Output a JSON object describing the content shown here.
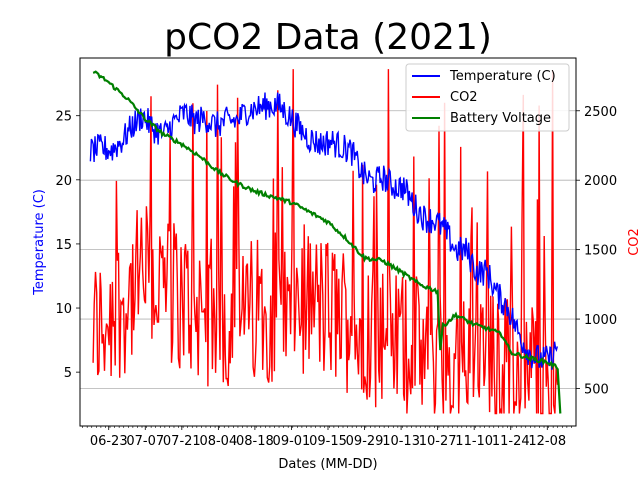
{
  "chart_data": {
    "type": "line",
    "title": "pCO2 Data (2021)",
    "xlabel": "Dates (MM-DD)",
    "ylabel_left": "Temperature (C)",
    "ylabel_right": "CO2",
    "x_ticks": [
      "06-23",
      "07-07",
      "07-21",
      "08-04",
      "08-18",
      "09-01",
      "09-15",
      "09-29",
      "10-13",
      "10-27",
      "11-10",
      "11-24",
      "12-08"
    ],
    "x_range": [
      "06-12",
      "12-19"
    ],
    "ylim_left": [
      0.8,
      29.5
    ],
    "ylim_right": [
      230,
      2880
    ],
    "y_ticks_left": [
      5,
      10,
      15,
      20,
      25
    ],
    "y_ticks_right": [
      500,
      1000,
      1500,
      2000,
      2500
    ],
    "grid": "horizontal, right axis",
    "legend_position": "top-right",
    "legend": [
      "Temperature (C)",
      "CO2",
      "Battery Voltage"
    ],
    "colors": {
      "temperature": "#0000ff",
      "co2": "#ff0000",
      "battery": "#008000",
      "left_label": "#0000ff",
      "right_label": "#ff0000"
    },
    "series": [
      {
        "name": "Temperature (C)",
        "axis": "left",
        "points": [
          [
            "06-16",
            22.2
          ],
          [
            "06-20",
            22.5
          ],
          [
            "06-24",
            22.3
          ],
          [
            "06-28",
            23.0
          ],
          [
            "07-02",
            24.2
          ],
          [
            "07-06",
            25.0
          ],
          [
            "07-10",
            24.0
          ],
          [
            "07-14",
            23.5
          ],
          [
            "07-18",
            24.5
          ],
          [
            "07-22",
            25.2
          ],
          [
            "07-26",
            24.6
          ],
          [
            "07-30",
            24.8
          ],
          [
            "08-03",
            24.2
          ],
          [
            "08-07",
            24.6
          ],
          [
            "08-11",
            24.6
          ],
          [
            "08-15",
            25.4
          ],
          [
            "08-19",
            25.6
          ],
          [
            "08-23",
            25.8
          ],
          [
            "08-27",
            25.8
          ],
          [
            "08-31",
            25.0
          ],
          [
            "09-04",
            24.0
          ],
          [
            "09-08",
            23.2
          ],
          [
            "09-12",
            22.8
          ],
          [
            "09-16",
            23.0
          ],
          [
            "09-20",
            22.6
          ],
          [
            "09-24",
            22.2
          ],
          [
            "09-28",
            20.5
          ],
          [
            "10-02",
            19.8
          ],
          [
            "10-06",
            20.2
          ],
          [
            "10-10",
            19.5
          ],
          [
            "10-14",
            19.4
          ],
          [
            "10-18",
            18.0
          ],
          [
            "10-22",
            17.0
          ],
          [
            "10-26",
            16.8
          ],
          [
            "10-30",
            16.0
          ],
          [
            "11-03",
            14.5
          ],
          [
            "11-07",
            14.5
          ],
          [
            "11-11",
            12.8
          ],
          [
            "11-15",
            12.8
          ],
          [
            "11-19",
            11.0
          ],
          [
            "11-23",
            10.0
          ],
          [
            "11-27",
            8.0
          ],
          [
            "12-01",
            6.5
          ],
          [
            "12-05",
            6.0
          ],
          [
            "12-09",
            6.0
          ],
          [
            "12-12",
            7.0
          ]
        ]
      },
      {
        "name": "CO2",
        "axis": "right",
        "range_start": "06-17",
        "range_end": "12-12"
      },
      {
        "name": "Battery Voltage",
        "axis": "right",
        "points": [
          [
            "06-17",
            2780
          ],
          [
            "06-22",
            2720
          ],
          [
            "06-30",
            2590
          ],
          [
            "07-07",
            2440
          ],
          [
            "07-14",
            2330
          ],
          [
            "07-21",
            2260
          ],
          [
            "07-28",
            2170
          ],
          [
            "08-04",
            2060
          ],
          [
            "08-11",
            1980
          ],
          [
            "08-18",
            1920
          ],
          [
            "08-25",
            1880
          ],
          [
            "09-01",
            1840
          ],
          [
            "09-08",
            1770
          ],
          [
            "09-15",
            1700
          ],
          [
            "09-22",
            1580
          ],
          [
            "09-29",
            1440
          ],
          [
            "10-06",
            1420
          ],
          [
            "10-13",
            1340
          ],
          [
            "10-20",
            1250
          ],
          [
            "10-27",
            1200
          ],
          [
            "10-28",
            780
          ],
          [
            "10-29",
            950
          ],
          [
            "11-03",
            1030
          ],
          [
            "11-10",
            960
          ],
          [
            "11-17",
            920
          ],
          [
            "11-21",
            880
          ],
          [
            "11-24",
            760
          ],
          [
            "12-01",
            720
          ],
          [
            "12-08",
            690
          ],
          [
            "12-12",
            650
          ],
          [
            "12-13",
            320
          ]
        ]
      }
    ]
  }
}
